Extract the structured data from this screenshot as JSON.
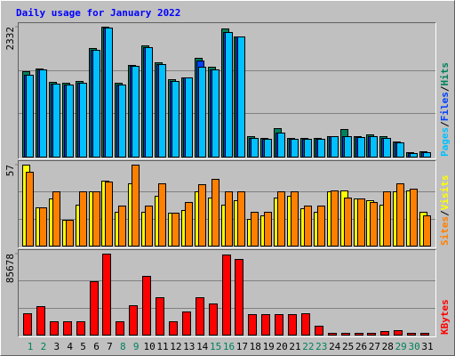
{
  "chart_data": [
    {
      "type": "bar",
      "title": "Daily usage for January 2022",
      "title_color": "#0000ff",
      "legend_separator": "/",
      "series": [
        {
          "name": "Hits",
          "color": "#00805c",
          "values": [
            1533,
            1581,
            1342,
            1326,
            1358,
            1949,
            2332,
            1326,
            1645,
            1996,
            1693,
            1390,
            1422,
            1773,
            1613,
            2300,
            2156,
            367,
            335,
            511,
            335,
            335,
            335,
            367,
            495,
            367,
            399,
            367,
            272,
            80,
            96
          ]
        },
        {
          "name": "Files",
          "color": "#0040ff",
          "values": [
            1469,
            1565,
            1310,
            1294,
            1326,
            1917,
            2316,
            1294,
            1629,
            1965,
            1661,
            1358,
            1422,
            1725,
            1565,
            2236,
            2156,
            335,
            319,
            431,
            319,
            319,
            319,
            367,
            367,
            351,
            367,
            335,
            256,
            64,
            80
          ]
        },
        {
          "name": "Pages",
          "color": "#00c0ff",
          "values": [
            1469,
            1565,
            1310,
            1294,
            1326,
            1917,
            2316,
            1294,
            1629,
            1965,
            1661,
            1358,
            1422,
            1613,
            1565,
            2236,
            2156,
            335,
            319,
            431,
            319,
            319,
            319,
            367,
            367,
            351,
            367,
            335,
            256,
            64,
            80
          ]
        }
      ],
      "ylim": [
        0,
        2332
      ],
      "yticks": [
        2332
      ]
    },
    {
      "type": "bar",
      "legend_separator": "/",
      "series": [
        {
          "name": "Visits",
          "color": "#ffff00",
          "values": [
            57,
            27,
            33,
            18,
            29,
            38,
            46,
            24,
            44,
            24,
            35,
            23,
            25,
            38,
            34,
            29,
            32,
            19,
            21,
            34,
            35,
            26,
            24,
            38,
            39,
            33,
            32,
            29,
            38,
            39,
            24
          ]
        },
        {
          "name": "Sites",
          "color": "#ff8000",
          "values": [
            52,
            27,
            38,
            18,
            38,
            38,
            45,
            28,
            57,
            28,
            44,
            23,
            31,
            43,
            47,
            38,
            38,
            24,
            24,
            38,
            38,
            28,
            28,
            39,
            34,
            33,
            31,
            38,
            44,
            40,
            21
          ]
        }
      ],
      "ylim": [
        0,
        57
      ],
      "yticks": [
        57
      ]
    },
    {
      "type": "bar",
      "categories": [
        "1",
        "2",
        "3",
        "4",
        "5",
        "6",
        "7",
        "8",
        "9",
        "10",
        "11",
        "12",
        "13",
        "14",
        "15",
        "16",
        "17",
        "18",
        "19",
        "20",
        "21",
        "22",
        "23",
        "24",
        "25",
        "26",
        "27",
        "28",
        "29",
        "30",
        "31"
      ],
      "category_colors": [
        "#00805c",
        "#00805c",
        "#000000",
        "#000000",
        "#000000",
        "#000000",
        "#000000",
        "#00805c",
        "#00805c",
        "#000000",
        "#000000",
        "#000000",
        "#000000",
        "#000000",
        "#00805c",
        "#00805c",
        "#000000",
        "#000000",
        "#000000",
        "#000000",
        "#000000",
        "#00805c",
        "#00805c",
        "#000000",
        "#000000",
        "#000000",
        "#000000",
        "#000000",
        "#00805c",
        "#00805c",
        "#000000"
      ],
      "series": [
        {
          "name": "KBytes",
          "color": "#ff0000",
          "values": [
            22600,
            30100,
            14100,
            14100,
            14100,
            56500,
            85678,
            14100,
            31100,
            62100,
            39500,
            14100,
            24500,
            39500,
            33000,
            84700,
            80000,
            21700,
            21700,
            21700,
            21700,
            22600,
            9400,
            1900,
            1900,
            1900,
            1900,
            3800,
            4700,
            1900,
            1900
          ]
        }
      ],
      "ylim": [
        0,
        85678
      ],
      "yticks": [
        85678
      ]
    }
  ]
}
